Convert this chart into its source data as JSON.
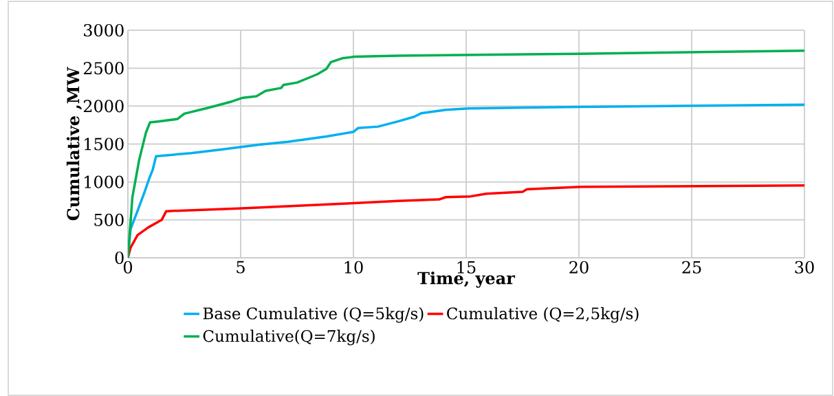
{
  "chart_data": {
    "type": "line",
    "xlabel": "Time, year",
    "ylabel": "Cumulative ,MW",
    "xlim": [
      0,
      30
    ],
    "xticks": [
      0,
      5,
      10,
      15,
      20,
      25,
      30
    ],
    "ylim": [
      0,
      3000
    ],
    "yticks": [
      0,
      500,
      1000,
      1500,
      2000,
      2500,
      3000
    ],
    "grid": true,
    "legend": "bottom",
    "marker": "none",
    "line_style": "solid",
    "series": [
      {
        "name": "Base Cumulative  (Q=5kg/s)",
        "color": "#00b0f0",
        "x": [
          0,
          0.12,
          0.43,
          0.73,
          0.94,
          1.1,
          1.25,
          2.8,
          4.2,
          5.8,
          7.1,
          8.8,
          10,
          10.2,
          11.1,
          12,
          12.7,
          13,
          14.1,
          15.1,
          20,
          30
        ],
        "values": [
          0,
          380,
          620,
          860,
          1040,
          1160,
          1340,
          1380,
          1430,
          1490,
          1530,
          1600,
          1660,
          1710,
          1730,
          1800,
          1860,
          1905,
          1950,
          1970,
          1990,
          2020
        ]
      },
      {
        "name": "Cumulative  (Q=2,5kg/s)",
        "color": "#ff0000",
        "x": [
          0,
          0.12,
          0.43,
          0.9,
          1.5,
          1.7,
          4.9,
          10,
          12,
          13.8,
          14.1,
          15.2,
          15.9,
          17.5,
          17.7,
          20.1,
          30
        ],
        "values": [
          0,
          135,
          300,
          400,
          500,
          615,
          650,
          720,
          750,
          770,
          800,
          810,
          845,
          870,
          905,
          935,
          955
        ]
      },
      {
        "name": "Cumulative(Q=7kg/s)",
        "color": "#00b050",
        "x": [
          0,
          0.2,
          0.5,
          0.8,
          0.98,
          1.4,
          2.2,
          2.5,
          3.6,
          4.6,
          5.1,
          5.7,
          6.1,
          6.8,
          6.9,
          7.5,
          8.4,
          8.8,
          9,
          9.5,
          10,
          12,
          20,
          30
        ],
        "values": [
          0,
          800,
          1290,
          1650,
          1785,
          1800,
          1830,
          1900,
          1980,
          2060,
          2110,
          2130,
          2200,
          2240,
          2280,
          2310,
          2420,
          2490,
          2580,
          2630,
          2650,
          2665,
          2690,
          2730
        ]
      }
    ]
  }
}
